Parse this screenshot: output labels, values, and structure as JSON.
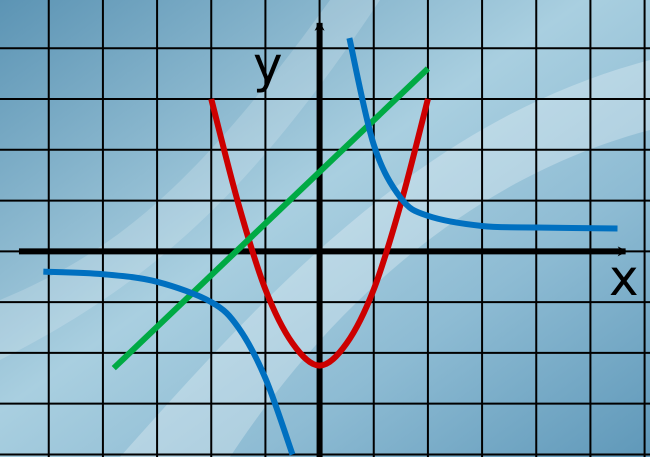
{
  "chart_data": {
    "type": "line",
    "title": "",
    "xlabel": "x",
    "ylabel": "y",
    "xlim": [
      -5.9,
      6.1
    ],
    "ylim": [
      -4.05,
      4.95
    ],
    "grid": true,
    "series": [
      {
        "color": "#cc0000",
        "kind": "parabola",
        "x": [
          -2.0,
          -1.5,
          -1.0,
          -0.5,
          0.0,
          0.5,
          1.0,
          1.5,
          2.0
        ],
        "y": [
          3.0,
          0.94,
          -0.75,
          -1.81,
          -2.25,
          -1.81,
          -0.75,
          0.94,
          3.0
        ]
      },
      {
        "color": "#00aa44",
        "kind": "line",
        "x": [
          -3.8,
          2.0
        ],
        "y": [
          -2.3,
          3.6
        ]
      },
      {
        "color": "#0070c0",
        "kind": "hyperbola-right",
        "x": [
          0.55,
          1.0,
          1.5,
          2.0,
          3.0,
          4.0,
          5.5
        ],
        "y": [
          4.2,
          2.1,
          1.05,
          0.7,
          0.5,
          0.47,
          0.45
        ]
      },
      {
        "color": "#0070c0",
        "kind": "hyperbola-left",
        "x": [
          -5.1,
          -4.0,
          -3.0,
          -2.0,
          -1.5,
          -1.0,
          -0.5
        ],
        "y": [
          -0.4,
          -0.45,
          -0.6,
          -1.0,
          -1.5,
          -2.5,
          -4.0
        ]
      }
    ]
  },
  "colors": {
    "grid": "#000000",
    "axis": "#000000",
    "background": "#7fb0cc"
  }
}
